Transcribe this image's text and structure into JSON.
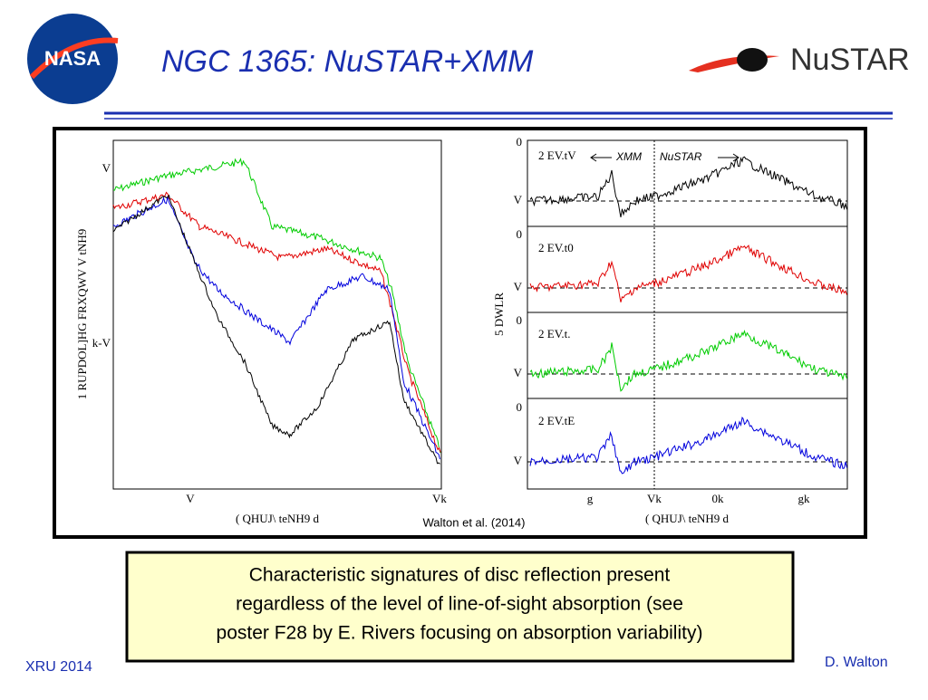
{
  "header": {
    "title": "NGC 1365: NuSTAR+XMM",
    "logo_left": "NASA",
    "logo_right": "NuSTAR"
  },
  "figure": {
    "left": {
      "ylabel": "1 RUPDOL]HG FRXQWV V tNH9",
      "yticks": [
        "V",
        "k-V"
      ],
      "xticks": [
        "V",
        "Vk"
      ],
      "xlabel": "( QHUJ\\ teNH9 d"
    },
    "right": {
      "ylabel": "5 DWLR",
      "panels": [
        "2 EV.tV",
        "2 EV.t0",
        "2 EV.t.",
        "2 EV.tE"
      ],
      "ytick_top": "0",
      "ytick_bottom": "V",
      "xticks": [
        "g",
        "Vk",
        "0k",
        "gk"
      ],
      "xlabel": "( QHUJ\\ teNH9 d",
      "annotations": [
        "XMM",
        "NuSTAR"
      ]
    },
    "caption": "Walton et al. (2014)"
  },
  "body": {
    "lines": [
      "Characteristic signatures of disc reflection present",
      "regardless of the level of line-of-sight absorption (see",
      "poster F28 by E. Rivers focusing on absorption variability)"
    ]
  },
  "footer": {
    "left": "XRU 2014",
    "right": "D. Walton"
  }
}
